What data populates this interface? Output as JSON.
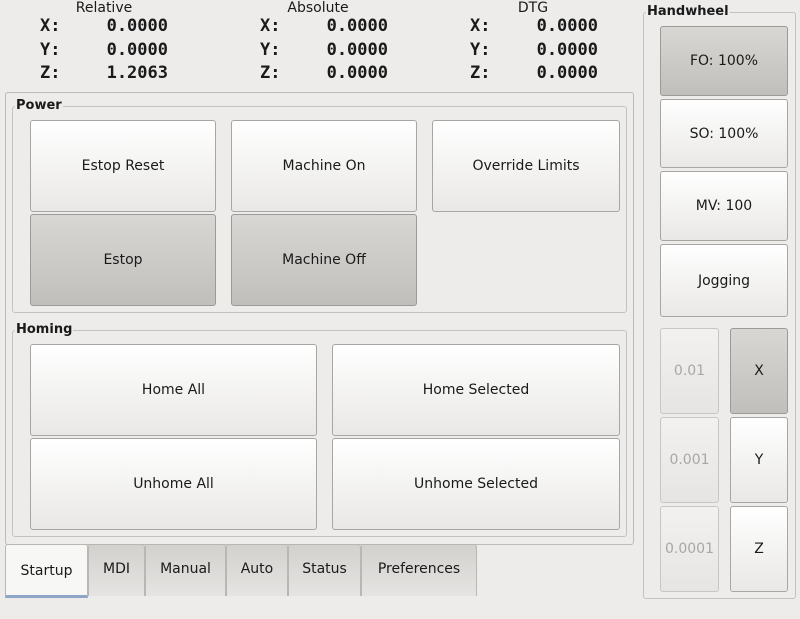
{
  "dro": [
    {
      "title": "Relative",
      "rows": [
        {
          "axis": "X:",
          "value": "0.0000"
        },
        {
          "axis": "Y:",
          "value": "0.0000"
        },
        {
          "axis": "Z:",
          "value": "1.2063"
        }
      ]
    },
    {
      "title": "Absolute",
      "rows": [
        {
          "axis": "X:",
          "value": "0.0000"
        },
        {
          "axis": "Y:",
          "value": "0.0000"
        },
        {
          "axis": "Z:",
          "value": "0.0000"
        }
      ]
    },
    {
      "title": "DTG",
      "rows": [
        {
          "axis": "X:",
          "value": "0.0000"
        },
        {
          "axis": "Y:",
          "value": "0.0000"
        },
        {
          "axis": "Z:",
          "value": "0.0000"
        }
      ]
    }
  ],
  "power": {
    "title": "Power",
    "estop_reset": "Estop Reset",
    "machine_on": "Machine On",
    "override_limits": "Override Limits",
    "estop": "Estop",
    "machine_off": "Machine Off"
  },
  "homing": {
    "title": "Homing",
    "home_all": "Home All",
    "home_selected": "Home Selected",
    "unhome_all": "Unhome All",
    "unhome_selected": "Unhome Selected"
  },
  "tabs": [
    {
      "label": "Startup",
      "active": true
    },
    {
      "label": "MDI"
    },
    {
      "label": "Manual"
    },
    {
      "label": "Auto"
    },
    {
      "label": "Status"
    },
    {
      "label": "Preferences"
    }
  ],
  "handwheel": {
    "title": "Handwheel",
    "fo": "FO: 100%",
    "so": "SO: 100%",
    "mv": "MV: 100",
    "jogging": "Jogging",
    "steps": [
      "0.01",
      "0.001",
      "0.0001"
    ],
    "axes": [
      "X",
      "Y",
      "Z"
    ],
    "selected_axis": "X"
  }
}
